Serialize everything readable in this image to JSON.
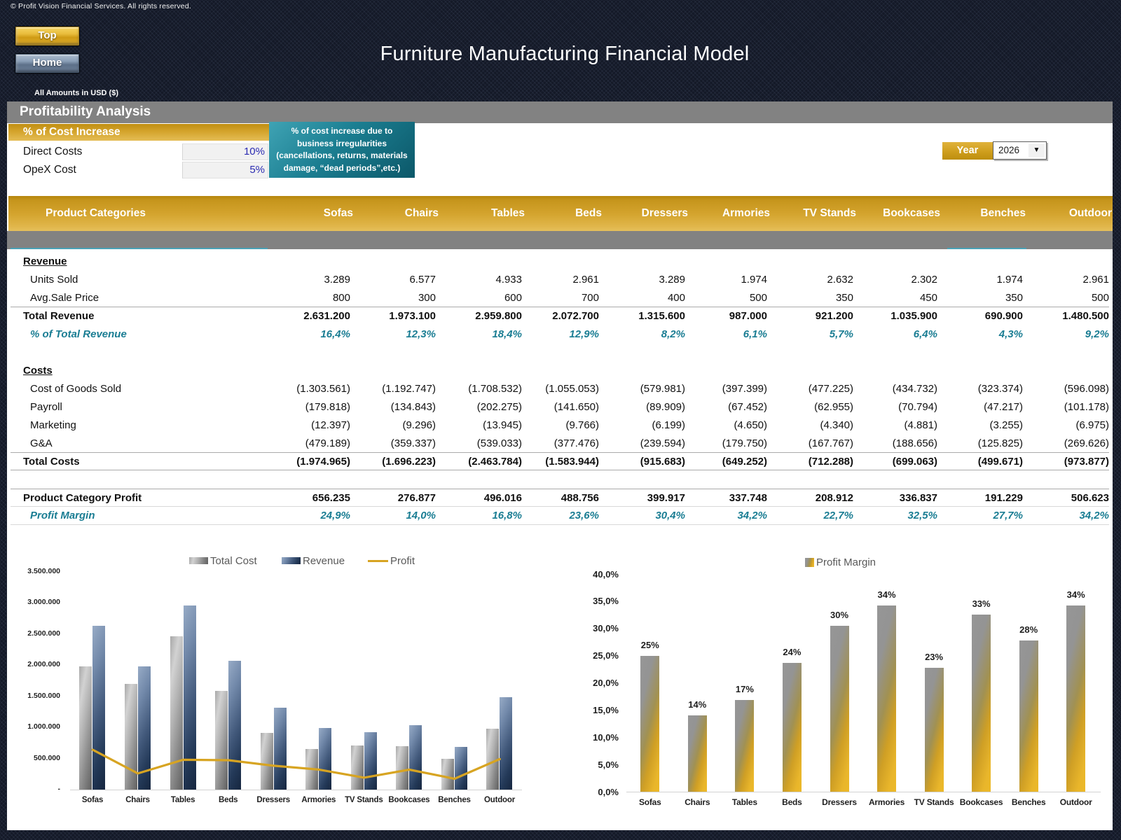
{
  "header": {
    "copyright": "© Profit Vision Financial Services. All rights reserved.",
    "top_button": "Top",
    "home_button": "Home",
    "title": "Furniture Manufacturing Financial Model",
    "amounts_note": "All Amounts in  USD ($)"
  },
  "section": {
    "title": "Profitability Analysis"
  },
  "cost_increase": {
    "title": "% of Cost Increase",
    "rows": [
      {
        "label": "Direct Costs",
        "value": "10%"
      },
      {
        "label": "OpeX Cost",
        "value": "5%"
      }
    ],
    "note_lines": [
      "% of cost increase due to",
      "business irregularities",
      "(cancellations, returns, materials",
      "damage, “dead periods”,etc.)"
    ]
  },
  "year_selector": {
    "label": "Year",
    "value": "2026",
    "arrow_icon": "▼"
  },
  "table": {
    "first_col_header": "Product Categories",
    "columns": [
      "Sofas",
      "Chairs",
      "Tables",
      "Beds",
      "Dressers",
      "Armories",
      "TV Stands",
      "Bookcases",
      "Benches",
      "Outdoor"
    ],
    "rows": [
      {
        "kind": "section",
        "label": "Revenue"
      },
      {
        "kind": "data",
        "label": "Units Sold",
        "values": [
          "3.289",
          "6.577",
          "4.933",
          "2.961",
          "3.289",
          "1.974",
          "2.632",
          "2.302",
          "1.974",
          "2.961"
        ]
      },
      {
        "kind": "data",
        "label": "Avg.Sale Price",
        "values": [
          "800",
          "300",
          "600",
          "700",
          "400",
          "500",
          "350",
          "450",
          "350",
          "500"
        ]
      },
      {
        "kind": "total",
        "label": "Total Revenue",
        "values": [
          "2.631.200",
          "1.973.100",
          "2.959.800",
          "2.072.700",
          "1.315.600",
          "987.000",
          "921.200",
          "1.035.900",
          "690.900",
          "1.480.500"
        ]
      },
      {
        "kind": "pct",
        "label": "% of Total Revenue",
        "values": [
          "16,4%",
          "12,3%",
          "18,4%",
          "12,9%",
          "8,2%",
          "6,1%",
          "5,7%",
          "6,4%",
          "4,3%",
          "9,2%"
        ]
      },
      {
        "kind": "spacer"
      },
      {
        "kind": "section",
        "label": "Costs"
      },
      {
        "kind": "data",
        "label": "Cost of Goods Sold",
        "values": [
          "(1.303.561)",
          "(1.192.747)",
          "(1.708.532)",
          "(1.055.053)",
          "(579.981)",
          "(397.399)",
          "(477.225)",
          "(434.732)",
          "(323.374)",
          "(596.098)"
        ]
      },
      {
        "kind": "data",
        "label": "Payroll",
        "values": [
          "(179.818)",
          "(134.843)",
          "(202.275)",
          "(141.650)",
          "(89.909)",
          "(67.452)",
          "(62.955)",
          "(70.794)",
          "(47.217)",
          "(101.178)"
        ]
      },
      {
        "kind": "data",
        "label": "Marketing",
        "values": [
          "(12.397)",
          "(9.296)",
          "(13.945)",
          "(9.766)",
          "(6.199)",
          "(4.650)",
          "(4.340)",
          "(4.881)",
          "(3.255)",
          "(6.975)"
        ]
      },
      {
        "kind": "data",
        "label": "G&A",
        "values": [
          "(479.189)",
          "(359.337)",
          "(539.033)",
          "(377.476)",
          "(239.594)",
          "(179.750)",
          "(167.767)",
          "(188.656)",
          "(125.825)",
          "(269.626)"
        ]
      },
      {
        "kind": "total",
        "label": "Total Costs",
        "values": [
          "(1.974.965)",
          "(1.696.223)",
          "(2.463.784)",
          "(1.583.944)",
          "(915.683)",
          "(649.252)",
          "(712.288)",
          "(699.063)",
          "(499.671)",
          "(973.877)"
        ]
      },
      {
        "kind": "spacer"
      },
      {
        "kind": "total",
        "label": "Product Category Profit",
        "values": [
          "656.235",
          "276.877",
          "496.016",
          "488.756",
          "399.917",
          "337.748",
          "208.912",
          "336.837",
          "191.229",
          "506.623"
        ]
      },
      {
        "kind": "pct",
        "label": "Profit Margin",
        "values": [
          "24,9%",
          "14,0%",
          "16,8%",
          "23,6%",
          "30,4%",
          "34,2%",
          "22,7%",
          "32,5%",
          "27,7%",
          "34,2%"
        ]
      }
    ]
  },
  "chart_data": [
    {
      "type": "bar",
      "title": "",
      "categories": [
        "Sofas",
        "Chairs",
        "Tables",
        "Beds",
        "Dressers",
        "Armories",
        "TV Stands",
        "Bookcases",
        "Benches",
        "Outdoor"
      ],
      "series": [
        {
          "name": "Total Cost",
          "kind": "bar",
          "style": "gray",
          "values": [
            1974965,
            1696223,
            2463784,
            1583944,
            915683,
            649252,
            712288,
            699063,
            499671,
            973877
          ]
        },
        {
          "name": "Revenue",
          "kind": "bar",
          "style": "navy",
          "values": [
            2631200,
            1973100,
            2959800,
            2072700,
            1315600,
            987000,
            921200,
            1035900,
            690900,
            1480500
          ]
        },
        {
          "name": "Profit",
          "kind": "line",
          "style": "gold",
          "values": [
            656235,
            276877,
            496016,
            488756,
            399917,
            337748,
            208912,
            336837,
            191229,
            506623
          ]
        }
      ],
      "ylim": [
        0,
        3500000
      ],
      "ytick_labels": [
        "3.500.000",
        "3.000.000",
        "2.500.000",
        "2.000.000",
        "1.500.000",
        "1.000.000",
        "500.000",
        "-"
      ],
      "ytick_values": [
        3500000,
        3000000,
        2500000,
        2000000,
        1500000,
        1000000,
        500000,
        0
      ],
      "grid": false,
      "legend_position": "top"
    },
    {
      "type": "bar",
      "title": "",
      "categories": [
        "Sofas",
        "Chairs",
        "Tables",
        "Beds",
        "Dressers",
        "Armories",
        "TV Stands",
        "Bookcases",
        "Benches",
        "Outdoor"
      ],
      "series": [
        {
          "name": "Profit Margin",
          "kind": "bar",
          "style": "margin",
          "values": [
            24.9,
            14.0,
            16.8,
            23.6,
            30.4,
            34.2,
            22.7,
            32.5,
            27.7,
            34.2
          ],
          "data_labels": [
            "25%",
            "14%",
            "17%",
            "24%",
            "30%",
            "34%",
            "23%",
            "33%",
            "28%",
            "34%"
          ]
        }
      ],
      "ylim": [
        0,
        40
      ],
      "ytick_labels": [
        "40,0%",
        "35,0%",
        "30,0%",
        "25,0%",
        "20,0%",
        "15,0%",
        "10,0%",
        "5,0%",
        "0,0%"
      ],
      "ytick_values": [
        40,
        35,
        30,
        25,
        20,
        15,
        10,
        5,
        0
      ],
      "grid": false,
      "legend_position": "top"
    }
  ],
  "colors": {
    "background": "#141927",
    "band_gray": "#828282",
    "gold_dark": "#b5850d",
    "gold_light": "#e5bf5b",
    "teal_note": "#1b7e91",
    "teal_text": "#1a7d93",
    "input_blue": "#2b2bb2",
    "bar_gray": "#8f8f8f",
    "bar_navy": "#1f3456",
    "profit_line": "#d7a422",
    "margin_bar_gold": "#efbe37",
    "axis_text": "#1f1f1f",
    "legend_text": "#595959"
  }
}
